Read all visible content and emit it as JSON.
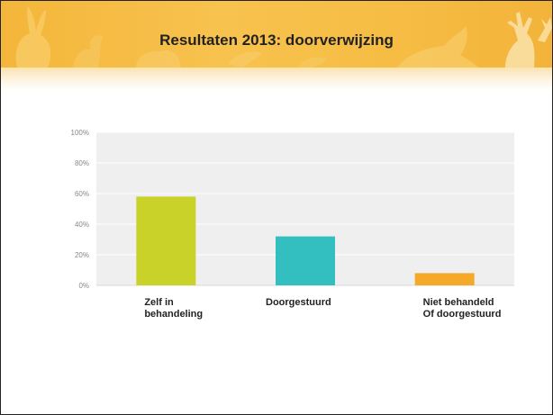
{
  "slide": {
    "title": "Resultaten 2013: doorverwijzing"
  },
  "chart_data": {
    "type": "bar",
    "categories": [
      [
        "Zelf in",
        "behandeling"
      ],
      [
        "Doorgestuurd"
      ],
      [
        "Niet behandeld",
        "Of doorgestuurd"
      ]
    ],
    "values": [
      58,
      32,
      8
    ],
    "colors": [
      "#c8d228",
      "#33bfc0",
      "#f4a928"
    ],
    "ylim": [
      0,
      100
    ],
    "yticks": [
      0,
      20,
      40,
      60,
      80,
      100
    ],
    "ytick_labels": [
      "0%",
      "20%",
      "40%",
      "60%",
      "80%",
      "100%"
    ],
    "grid": true,
    "plot_background": "#efefef",
    "banner_color": "#f5b83e"
  }
}
